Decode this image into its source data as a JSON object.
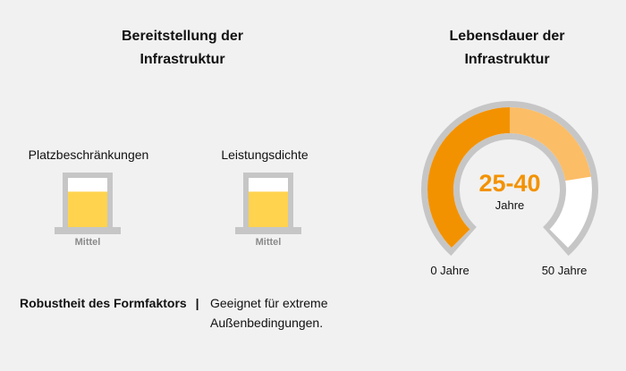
{
  "left_section": {
    "title_line1": "Bereitstellung der",
    "title_line2": "Infrastruktur",
    "meters": [
      {
        "label": "Platzbeschränkungen",
        "level_label": "Mittel",
        "level": 0.72
      },
      {
        "label": "Leistungsdichte",
        "level_label": "Mittel",
        "level": 0.72
      }
    ],
    "robustness": {
      "label": "Robustheit des Formfaktors",
      "separator": "|",
      "text_line1": "Geeignet für extreme",
      "text_line2": "Außenbedingungen."
    }
  },
  "right_section": {
    "title_line1": "Lebensdauer der",
    "title_line2": "Infrastruktur",
    "gauge": {
      "value": "25-40",
      "unit": "Jahre",
      "min_label": "0 Jahre",
      "max_label": "50 Jahre",
      "min": 0,
      "max": 50,
      "range_low": 25,
      "range_high": 40
    }
  },
  "colors": {
    "background": "#f1f1f1",
    "accent_orange": "#f39200",
    "light_orange": "#fbbd66",
    "meter_fill": "#ffd34d",
    "frame_gray": "#c6c6c6",
    "white": "#ffffff"
  }
}
